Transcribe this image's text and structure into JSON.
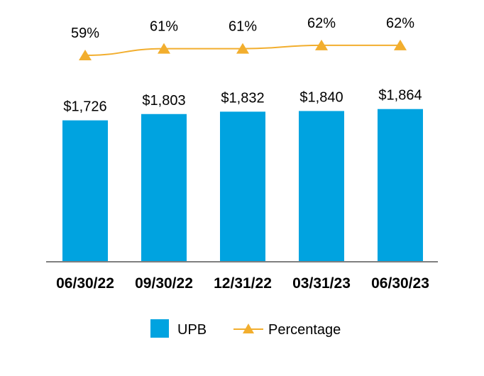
{
  "chart_data": {
    "type": "bar",
    "categories": [
      "06/30/22",
      "09/30/22",
      "12/31/22",
      "03/31/23",
      "06/30/23"
    ],
    "series": [
      {
        "name": "UPB",
        "type": "bar",
        "values": [
          1726,
          1803,
          1832,
          1840,
          1864
        ],
        "labels": [
          "$1,726",
          "$1,803",
          "$1,832",
          "$1,840",
          "$1,864"
        ],
        "color": "#00A3E0"
      },
      {
        "name": "Percentage",
        "type": "line",
        "marker": "triangle",
        "values": [
          59,
          61,
          61,
          62,
          62
        ],
        "labels": [
          "59%",
          "61%",
          "61%",
          "62%",
          "62%"
        ],
        "color": "#F2AE2E"
      }
    ],
    "legend_position": "bottom",
    "grid": false
  }
}
